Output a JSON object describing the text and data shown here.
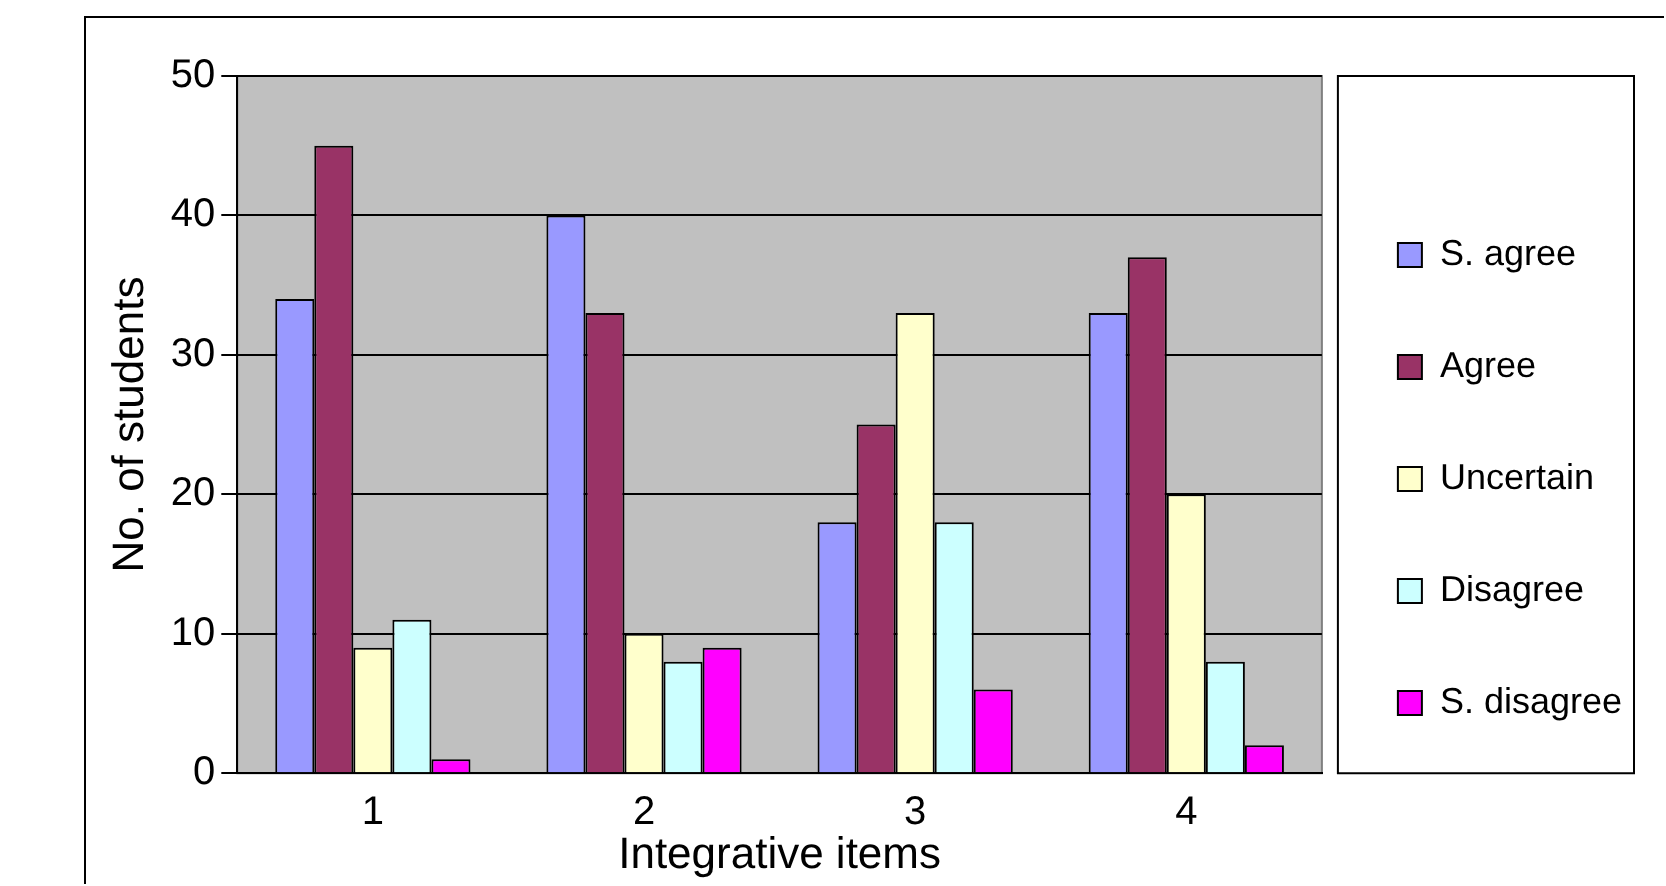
{
  "chart_data": {
    "type": "bar",
    "xlabel": "Integrative items",
    "ylabel": "No. of students",
    "categories": [
      "1",
      "2",
      "3",
      "4"
    ],
    "series": [
      {
        "name": "S. agree",
        "color": "#9999ff",
        "values": [
          34,
          40,
          18,
          33
        ]
      },
      {
        "name": "Agree",
        "color": "#993366",
        "values": [
          45,
          33,
          25,
          37
        ]
      },
      {
        "name": "Uncertain",
        "color": "#ffffcc",
        "values": [
          9,
          10,
          33,
          20
        ]
      },
      {
        "name": "Disagree",
        "color": "#ccffff",
        "values": [
          11,
          8,
          18,
          8
        ]
      },
      {
        "name": "S. disagree",
        "color": "#ff00ff",
        "values": [
          1,
          9,
          6,
          2
        ]
      }
    ],
    "ylim": [
      0,
      50
    ],
    "yticks": [
      0,
      10,
      20,
      30,
      40,
      50
    ],
    "grid": "y",
    "legend": "right"
  }
}
